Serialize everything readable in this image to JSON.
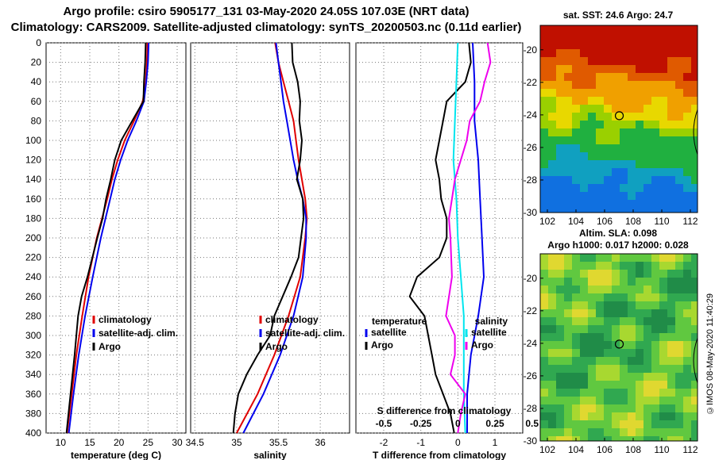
{
  "header": {
    "line1": "Argo profile: csiro 5905177_131 03-May-2020 24.05S 107.03E (NRT data)",
    "line2": "Climatology: CARS2009. Satellite-adjusted climatology: synTS_20200503.nc (0.11d earlier)"
  },
  "maps": {
    "sst_label": "sat. SST: 24.6 Argo: 24.7",
    "sla_label_1": "Altim. SLA: 0.098",
    "sla_label_2": "Argo h1000: 0.017 h2000: 0.028",
    "lon_ticks": [
      "102",
      "104",
      "106",
      "108",
      "110",
      "112"
    ],
    "lat_ticks": [
      "-20",
      "-22",
      "-24",
      "-26",
      "-28",
      "-30"
    ],
    "lon_range": [
      101.5,
      112.5
    ],
    "lat_range": [
      -30,
      -18.5
    ],
    "float_position": {
      "lon": 107.03,
      "lat": -24.05
    }
  },
  "credit": "©IMOS 08-May-2020 11:40:29",
  "colors": {
    "climatology": "#e00000",
    "satellite": "#0000ee",
    "argo": "#000000",
    "sat_salinity": "#00e5ee",
    "argo_salinity": "#ee00ee"
  },
  "chart_data": [
    {
      "type": "line",
      "id": "temperature",
      "xlabel": "temperature (deg C)",
      "xlim": [
        7.5,
        31.5
      ],
      "xticks": [
        "10",
        "15",
        "20",
        "25",
        "30"
      ],
      "ylim": [
        400,
        0
      ],
      "yticks": [
        "0",
        "20",
        "40",
        "60",
        "80",
        "100",
        "120",
        "140",
        "160",
        "180",
        "200",
        "220",
        "240",
        "260",
        "280",
        "300",
        "320",
        "340",
        "360",
        "380",
        "400"
      ],
      "legend": [
        "climatology",
        "satellite-adj. clim.",
        "Argo"
      ],
      "series": [
        {
          "name": "climatology",
          "color": "#e00000",
          "depth": [
            0,
            20,
            40,
            60,
            80,
            100,
            120,
            140,
            160,
            180,
            200,
            240,
            280,
            320,
            360,
            400
          ],
          "values": [
            24.9,
            24.8,
            24.6,
            24.1,
            22.6,
            21.0,
            19.8,
            18.8,
            18.0,
            17.1,
            16.2,
            14.8,
            13.7,
            12.7,
            11.9,
            11.1
          ]
        },
        {
          "name": "satellite-adj. clim.",
          "color": "#0000ee",
          "depth": [
            0,
            20,
            40,
            60,
            80,
            100,
            120,
            140,
            160,
            180,
            200,
            240,
            280,
            320,
            360,
            400
          ],
          "values": [
            25.1,
            25.0,
            24.7,
            24.3,
            23.0,
            21.5,
            20.3,
            19.3,
            18.5,
            17.7,
            16.9,
            15.5,
            14.2,
            13.1,
            12.2,
            11.4
          ]
        },
        {
          "name": "Argo",
          "color": "#000000",
          "depth": [
            0,
            20,
            40,
            60,
            80,
            100,
            120,
            140,
            160,
            180,
            200,
            240,
            260,
            280,
            320,
            360,
            400
          ],
          "values": [
            24.6,
            24.5,
            24.3,
            24.2,
            22.3,
            20.4,
            19.3,
            18.6,
            17.8,
            17.2,
            16.3,
            14.6,
            13.6,
            13.0,
            12.4,
            11.7,
            11.0
          ]
        }
      ]
    },
    {
      "type": "line",
      "id": "salinity",
      "xlabel": "salinity",
      "xlim": [
        34.45,
        36.35
      ],
      "xticks": [
        "34.5",
        "35",
        "35.5",
        "36"
      ],
      "ylim": [
        400,
        0
      ],
      "legend": [
        "climatology",
        "satellite-adj. clim.",
        "Argo"
      ],
      "series": [
        {
          "name": "climatology",
          "color": "#e00000",
          "depth": [
            0,
            20,
            40,
            60,
            80,
            100,
            120,
            140,
            160,
            180,
            200,
            240,
            280,
            320,
            360,
            400
          ],
          "values": [
            35.46,
            35.5,
            35.56,
            35.62,
            35.68,
            35.71,
            35.74,
            35.78,
            35.82,
            35.84,
            35.82,
            35.76,
            35.62,
            35.45,
            35.25,
            35.0
          ]
        },
        {
          "name": "satellite-adj. clim.",
          "color": "#0000ee",
          "depth": [
            0,
            20,
            40,
            60,
            80,
            100,
            120,
            140,
            160,
            180,
            200,
            240,
            280,
            320,
            360,
            400
          ],
          "values": [
            35.47,
            35.5,
            35.53,
            35.56,
            35.6,
            35.64,
            35.68,
            35.73,
            35.79,
            35.83,
            35.83,
            35.79,
            35.68,
            35.52,
            35.32,
            35.08
          ]
        },
        {
          "name": "Argo",
          "color": "#000000",
          "depth": [
            0,
            20,
            40,
            60,
            80,
            100,
            120,
            140,
            160,
            180,
            200,
            220,
            240,
            260,
            280,
            300,
            320,
            340,
            360,
            380,
            400
          ],
          "values": [
            35.66,
            35.67,
            35.73,
            35.76,
            35.75,
            35.78,
            35.76,
            35.72,
            35.79,
            35.8,
            35.77,
            35.74,
            35.65,
            35.55,
            35.45,
            35.4,
            35.25,
            35.12,
            35.02,
            34.98,
            34.96
          ]
        }
      ]
    },
    {
      "type": "line",
      "id": "difference",
      "xlabel": "T difference from climatology",
      "top_label": "S difference from climatology",
      "xlim": [
        -2.75,
        1.75
      ],
      "xticks": [
        "-2",
        "-1",
        "0",
        "1"
      ],
      "top_xticks": [
        "-0.5",
        "-0.25",
        "0",
        "0.25",
        "0.5"
      ],
      "ylim": [
        400,
        0
      ],
      "legend_temperature": {
        "title": "temperature",
        "items": [
          "satellite",
          "Argo"
        ]
      },
      "legend_salinity": {
        "title": "salinity",
        "items": [
          "satellite",
          "Argo"
        ]
      },
      "series": [
        {
          "name": "temperature satellite",
          "color": "#0000ee",
          "depth": [
            0,
            40,
            80,
            120,
            160,
            200,
            240,
            280,
            320,
            360,
            400
          ],
          "values": [
            0.4,
            0.45,
            0.45,
            0.55,
            0.6,
            0.65,
            0.7,
            0.55,
            0.35,
            0.25,
            0.25
          ]
        },
        {
          "name": "temperature Argo",
          "color": "#000000",
          "depth": [
            0,
            20,
            40,
            60,
            80,
            100,
            120,
            140,
            160,
            180,
            200,
            220,
            240,
            260,
            280,
            300,
            320,
            340,
            360,
            380,
            400
          ],
          "values": [
            0.3,
            0.35,
            0.2,
            -0.3,
            -0.4,
            -0.5,
            -0.6,
            -0.5,
            -0.45,
            -0.3,
            -0.3,
            -0.5,
            -1.1,
            -1.3,
            -0.9,
            -0.8,
            -0.7,
            -0.6,
            -0.4,
            -0.2,
            -0.1
          ]
        },
        {
          "name": "salinity satellite",
          "color": "#00e5ee",
          "depth": [
            0,
            40,
            80,
            120,
            160,
            200,
            240,
            280,
            320,
            360,
            400
          ],
          "values": [
            0.0,
            -0.01,
            -0.02,
            -0.03,
            -0.01,
            0.0,
            0.02,
            0.04,
            0.04,
            0.04,
            0.05
          ]
        },
        {
          "name": "salinity Argo",
          "color": "#ee00ee",
          "depth": [
            0,
            20,
            40,
            60,
            80,
            100,
            120,
            140,
            160,
            180,
            200,
            240,
            280,
            300,
            320,
            340,
            360,
            380,
            400
          ],
          "values": [
            0.2,
            0.22,
            0.18,
            0.15,
            0.08,
            0.06,
            0.02,
            -0.02,
            -0.04,
            -0.06,
            -0.05,
            -0.04,
            -0.08,
            -0.02,
            -0.02,
            -0.05,
            0.05,
            0.02,
            0.0
          ]
        }
      ]
    }
  ]
}
